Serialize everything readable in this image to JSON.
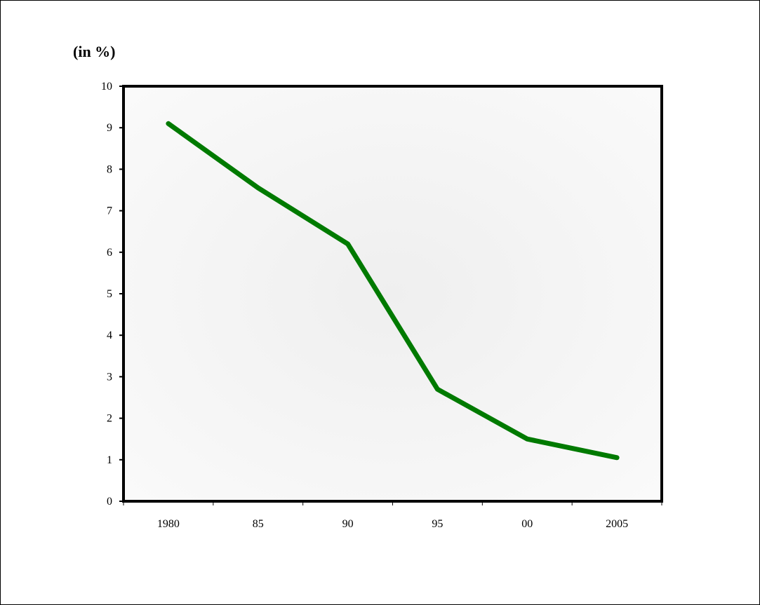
{
  "chart_data": {
    "type": "line",
    "title": "",
    "unit_label": "(in %)",
    "xlabel": "",
    "ylabel": "",
    "categories": [
      "1980",
      "85",
      "90",
      "95",
      "00",
      "2005"
    ],
    "series": [
      {
        "values": [
          9.1,
          7.55,
          6.2,
          2.7,
          1.5,
          1.05
        ]
      }
    ],
    "ylim": [
      0,
      10
    ],
    "yticks": [
      0,
      1,
      2,
      3,
      4,
      5,
      6,
      7,
      8,
      9,
      10
    ],
    "grid": false,
    "legend": "none"
  },
  "colors": {
    "line": "#007a00",
    "plot_center": "#efefef",
    "plot_edge": "#fafafa",
    "axis": "#000000"
  }
}
